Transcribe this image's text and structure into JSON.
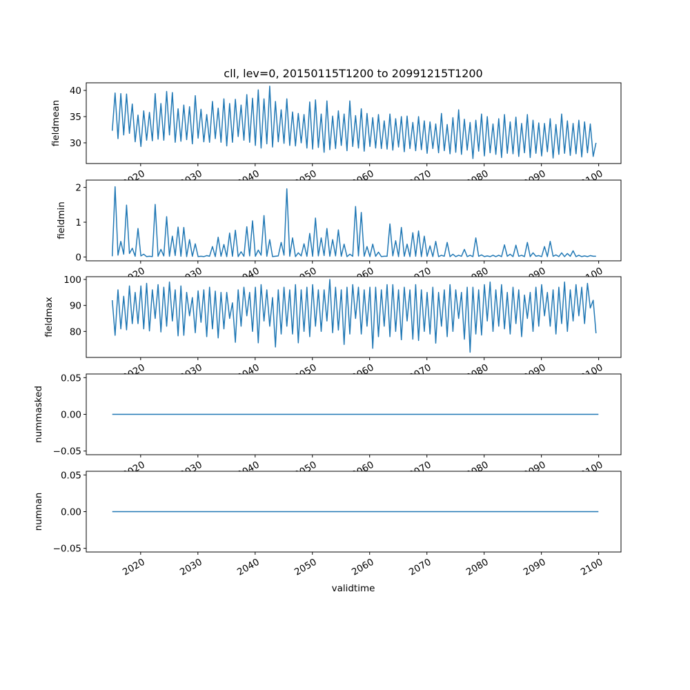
{
  "chart_data": [
    {
      "type": "line",
      "title": "cll, lev=0, 20150115T1200 to 20991215T1200",
      "ylabel": "fieldmean",
      "xlabel": "",
      "ylim": [
        26.05,
        41.45
      ],
      "yticks": [
        30,
        35,
        40
      ],
      "ytick_labels": [
        "30",
        "35",
        "40"
      ],
      "xtick_labels": [
        "2020",
        "2030",
        "2040",
        "2050",
        "2060",
        "2070",
        "2080",
        "2090",
        "2100"
      ],
      "x_start": 2015.04,
      "x_step": 0.5,
      "color": "#1f77b4",
      "values": [
        32.3,
        39.5,
        30.8,
        39.4,
        31.5,
        39.3,
        31.8,
        37.4,
        30.2,
        35.3,
        29.3,
        36.1,
        30.5,
        35.8,
        30.4,
        39.4,
        30.7,
        37.5,
        30.5,
        39.8,
        31.5,
        39.6,
        30.1,
        36.5,
        30.3,
        37.2,
        30.6,
        36.9,
        29.8,
        39.0,
        30.9,
        36.4,
        30.2,
        35.4,
        30.1,
        37.9,
        30.8,
        36.6,
        30.1,
        38.4,
        29.4,
        37.5,
        30.1,
        38.3,
        31.2,
        37.2,
        30.5,
        39.2,
        30.1,
        38.5,
        29.5,
        40.1,
        29.0,
        38.4,
        29.8,
        40.8,
        29.2,
        37.9,
        30.2,
        36.3,
        29.9,
        38.4,
        29.5,
        35.9,
        29.4,
        35.6,
        30.0,
        35.4,
        29.0,
        37.8,
        28.8,
        38.2,
        29.1,
        35.5,
        28.2,
        38.0,
        28.7,
        35.1,
        28.9,
        36.1,
        29.5,
        35.5,
        28.5,
        38.0,
        29.3,
        35.2,
        29.0,
        36.5,
        28.4,
        35.6,
        29.3,
        34.8,
        29.0,
        35.4,
        28.9,
        34.2,
        28.8,
        35.5,
        28.6,
        34.6,
        29.2,
        35.0,
        28.3,
        35.1,
        28.9,
        33.9,
        28.5,
        35.0,
        28.7,
        34.2,
        28.0,
        34.0,
        28.9,
        33.6,
        28.1,
        35.6,
        28.5,
        33.5,
        27.9,
        34.8,
        28.2,
        36.3,
        27.8,
        34.5,
        28.6,
        33.9,
        27.0,
        34.3,
        28.4,
        35.5,
        27.5,
        35.0,
        28.1,
        33.6,
        27.8,
        34.6,
        27.2,
        35.4,
        28.0,
        34.0,
        27.9,
        34.9,
        27.4,
        33.7,
        28.1,
        35.4,
        27.2,
        34.3,
        28.0,
        33.8,
        27.5,
        33.7,
        28.3,
        34.6,
        27.1,
        33.5,
        27.8,
        35.5,
        28.0,
        34.2,
        27.6,
        33.7,
        27.9,
        34.3,
        27.3,
        34.0,
        28.1,
        33.6,
        27.4,
        30.0
      ]
    },
    {
      "type": "line",
      "ylabel": "fieldmin",
      "ylim": [
        -0.11,
        2.21
      ],
      "yticks": [
        0,
        1,
        2
      ],
      "ytick_labels": [
        "0",
        "1",
        "2"
      ],
      "xtick_labels": [
        "2020",
        "2030",
        "2040",
        "2050",
        "2060",
        "2070",
        "2080",
        "2090",
        "2100"
      ],
      "x_start": 2015.04,
      "x_step": 0.5,
      "color": "#1f77b4",
      "values": [
        0.02,
        2.02,
        0.05,
        0.45,
        0.08,
        1.49,
        0.1,
        0.25,
        0.02,
        0.82,
        0.03,
        0.08,
        0.01,
        0.02,
        0.01,
        1.51,
        0.02,
        0.22,
        0.03,
        1.16,
        0.02,
        0.6,
        0.04,
        0.86,
        0.02,
        0.85,
        0.01,
        0.5,
        0.02,
        0.38,
        0.01,
        0.02,
        0.01,
        0.04,
        0.02,
        0.3,
        0.01,
        0.57,
        0.02,
        0.36,
        0.01,
        0.69,
        0.02,
        0.77,
        0.01,
        0.15,
        0.02,
        0.87,
        0.03,
        1.04,
        0.02,
        0.2,
        0.05,
        1.19,
        0.02,
        0.5,
        0.01,
        0.02,
        0.03,
        0.42,
        0.05,
        1.96,
        0.02,
        0.55,
        0.01,
        0.12,
        0.03,
        0.38,
        0.02,
        0.68,
        0.02,
        1.12,
        0.03,
        0.55,
        0.04,
        0.82,
        0.02,
        0.5,
        0.03,
        0.78,
        0.02,
        0.37,
        0.01,
        0.08,
        0.02,
        1.45,
        0.03,
        1.28,
        0.02,
        0.3,
        0.01,
        0.37,
        0.02,
        0.14,
        0.01,
        0.02,
        0.02,
        0.95,
        0.03,
        0.47,
        0.01,
        0.85,
        0.02,
        0.37,
        0.01,
        0.7,
        0.02,
        0.75,
        0.01,
        0.6,
        0.02,
        0.32,
        0.01,
        0.45,
        0.01,
        0.05,
        0.02,
        0.42,
        0.01,
        0.08,
        0.01,
        0.05,
        0.02,
        0.22,
        0.01,
        0.05,
        0.01,
        0.55,
        0.02,
        0.06,
        0.01,
        0.03,
        0.01,
        0.05,
        0.01,
        0.05,
        0.01,
        0.35,
        0.02,
        0.08,
        0.01,
        0.34,
        0.02,
        0.05,
        0.01,
        0.42,
        0.01,
        0.12,
        0.02,
        0.04,
        0.01,
        0.3,
        0.01,
        0.45,
        0.02,
        0.06,
        0.01,
        0.12,
        0.01,
        0.1,
        0.02,
        0.18,
        0.01,
        0.05,
        0.01,
        0.03,
        0.01,
        0.04,
        0.02,
        0.02
      ]
    },
    {
      "type": "line",
      "ylabel": "fieldmax",
      "ylim": [
        70.0,
        101.05
      ],
      "yticks": [
        80,
        90,
        100
      ],
      "ytick_labels": [
        "80",
        "90",
        "100"
      ],
      "xtick_labels": [
        "2020",
        "2030",
        "2040",
        "2050",
        "2060",
        "2070",
        "2080",
        "2090",
        "2100"
      ],
      "x_start": 2015.04,
      "x_step": 0.5,
      "color": "#1f77b4",
      "values": [
        92,
        78.5,
        96,
        81,
        93.5,
        80.6,
        97.5,
        83,
        95,
        83,
        97.5,
        81,
        98.5,
        80.2,
        96,
        85,
        98,
        79.8,
        97,
        82,
        99,
        84,
        96,
        78.3,
        97.5,
        78.5,
        95,
        86,
        93,
        79.5,
        95.6,
        83.5,
        96,
        78,
        97,
        81,
        95.5,
        77.5,
        95,
        81,
        95,
        85,
        91,
        75.8,
        96,
        82,
        97,
        86,
        95,
        80,
        97,
        75.6,
        98,
        84,
        96,
        82,
        93,
        74,
        96,
        79,
        97,
        82,
        96,
        79,
        98,
        75.6,
        96,
        80,
        97,
        78,
        98,
        82,
        96,
        80,
        96,
        84,
        100,
        79.5,
        97,
        80.5,
        96,
        75,
        97,
        79,
        98,
        85,
        97,
        79,
        96,
        82,
        97,
        73.5,
        97,
        78,
        96,
        82,
        98,
        78,
        98,
        80,
        96,
        76.8,
        97,
        84,
        96,
        77,
        98,
        76.5,
        96,
        80,
        95,
        79,
        97,
        75.5,
        95,
        82,
        96,
        78,
        98,
        80,
        96,
        85,
        95,
        77,
        97,
        72,
        97,
        79,
        96,
        78.6,
        98,
        84,
        99,
        80,
        96,
        82,
        98,
        81,
        95,
        79,
        97,
        83,
        96,
        78,
        94,
        85,
        95,
        80,
        97,
        82,
        98,
        86,
        95,
        82,
        96,
        79,
        97,
        83,
        99,
        80,
        96,
        84,
        98,
        86,
        97,
        83,
        98.5,
        89,
        92,
        79.3
      ]
    },
    {
      "type": "line",
      "ylabel": "nummasked",
      "ylim": [
        -0.055,
        0.055
      ],
      "yticks": [
        -0.05,
        0,
        0.05
      ],
      "ytick_labels": [
        "−0.05",
        "0.00",
        "0.05"
      ],
      "xtick_labels": [
        "2020",
        "2030",
        "2040",
        "2050",
        "2060",
        "2070",
        "2080",
        "2090",
        "2100"
      ],
      "x_start": 2015.04,
      "x_step": 84.92,
      "color": "#1f77b4",
      "values": [
        0,
        0
      ]
    },
    {
      "type": "line",
      "ylabel": "numnan",
      "xlabel": "validtime",
      "ylim": [
        -0.055,
        0.055
      ],
      "yticks": [
        -0.05,
        0,
        0.05
      ],
      "ytick_labels": [
        "−0.05",
        "0.00",
        "0.05"
      ],
      "xtick_labels": [
        "2020",
        "2030",
        "2040",
        "2050",
        "2060",
        "2070",
        "2080",
        "2090",
        "2100"
      ],
      "x_start": 2015.04,
      "x_step": 84.92,
      "color": "#1f77b4",
      "values": [
        0,
        0
      ]
    }
  ]
}
